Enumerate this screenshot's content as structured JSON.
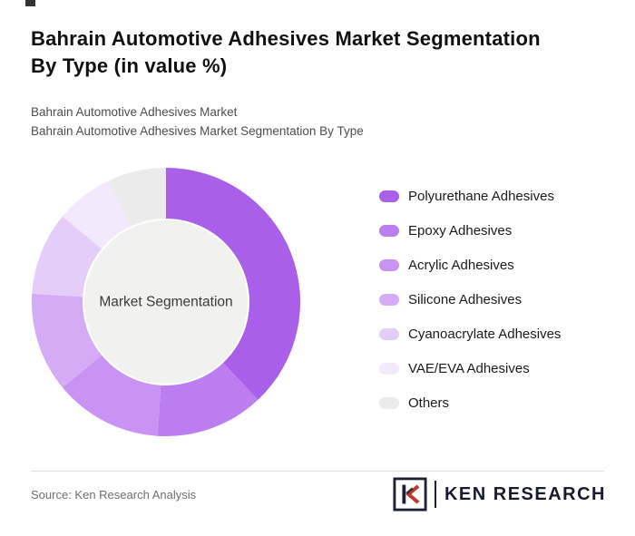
{
  "page": {
    "title_line1": "Bahrain Automotive Adhesives Market Segmentation",
    "title_line2": "By Type (in value %)",
    "subtitle_line1": "Bahrain Automotive Adhesives Market",
    "subtitle_line2": "Bahrain Automotive Adhesives Market Segmentation By Type"
  },
  "chart_data": {
    "type": "pie",
    "donut": true,
    "center_label": "Market Segmentation",
    "categories": [
      "Polyurethane Adhesives",
      "Epoxy Adhesives",
      "Acrylic Adhesives",
      "Silicone Adhesives",
      "Cyanoacrylate Adhesives",
      "VAE/EVA Adhesives",
      "Others"
    ],
    "values": [
      38,
      13,
      13,
      12,
      10,
      7,
      7
    ],
    "colors": [
      "#a95fe8",
      "#bb7def",
      "#c893f2",
      "#d5abf6",
      "#e5cdfa",
      "#f3e9fd",
      "#ebebeb"
    ],
    "center_fill": "#f1f1f0",
    "start_angle_deg": 0,
    "direction": "clockwise",
    "legend_position": "right"
  },
  "footer": {
    "source": "Source: Ken Research Analysis",
    "brand": "KEN RESEARCH"
  },
  "colors": {
    "title": "#111111",
    "subtitle": "#4d4d4d",
    "brand_dark": "#171c2e",
    "brand_red": "#c0392b"
  }
}
